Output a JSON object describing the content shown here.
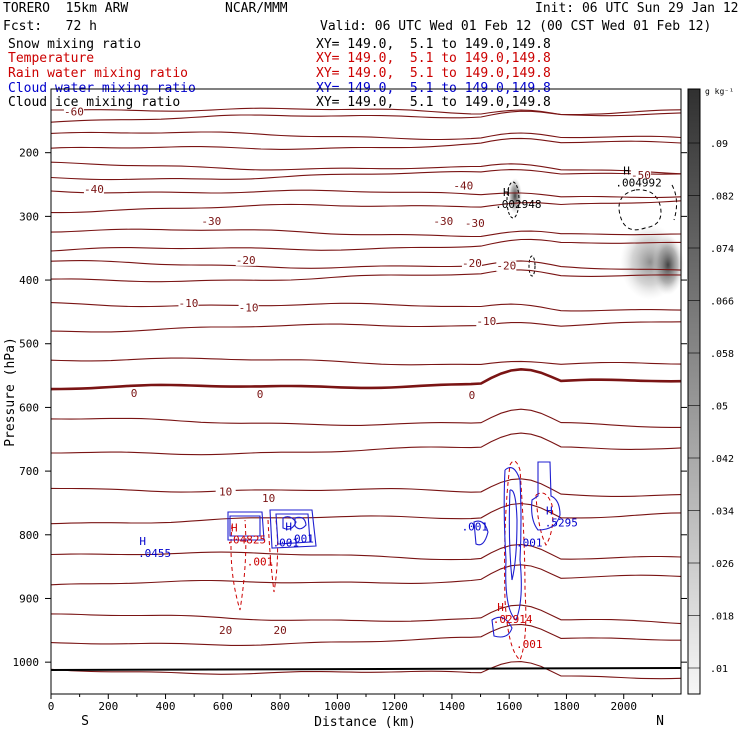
{
  "header": {
    "model": "TORERO  15km ARW",
    "center": "NCAR/MMM",
    "init": "Init: 06 UTC Sun 29 Jan 12",
    "fcst": "Fcst:   72 h",
    "valid": "Valid: 06 UTC Wed 01 Feb 12 (00 CST Wed 01 Feb 12)"
  },
  "fields": [
    {
      "name": "Snow mixing ratio",
      "xy": "XY= 149.0,  5.1 to 149.0,149.8",
      "color": "#000000"
    },
    {
      "name": "Temperature",
      "xy": "XY= 149.0,  5.1 to 149.0,149.8",
      "color": "#cc0000"
    },
    {
      "name": "Rain water mixing ratio",
      "xy": "XY= 149.0,  5.1 to 149.0,149.8",
      "color": "#cc0000"
    },
    {
      "name": "Cloud water mixing ratio",
      "xy": "XY= 149.0,  5.1 to 149.0,149.8",
      "color": "#0000cc"
    },
    {
      "name": "Cloud ice mixing ratio",
      "xy": "XY= 149.0,  5.1 to 149.0,149.8",
      "color": "#000000"
    }
  ],
  "colorbar": {
    "unit": "g kg⁻¹",
    "labels": [
      ".09",
      ".082",
      ".074",
      ".066",
      ".058",
      ".05",
      ".042",
      ".034",
      ".026",
      ".018",
      ".01"
    ]
  },
  "chart_data": {
    "type": "contour-cross-section",
    "xlabel": "Distance (km)",
    "ylabel": "Pressure (hPa)",
    "x_ticks": [
      0,
      200,
      400,
      600,
      800,
      1000,
      1200,
      1400,
      1600,
      1800,
      2000
    ],
    "y_ticks": [
      200,
      300,
      400,
      500,
      600,
      700,
      800,
      900,
      1000
    ],
    "xlim": [
      0,
      2200
    ],
    "ylim": [
      1050,
      100
    ],
    "endpoints": {
      "left": "S",
      "right": "N"
    },
    "isotherm_labels": [
      {
        "text": "-60",
        "x": 80,
        "p": 140
      },
      {
        "text": "-50",
        "x": 2060,
        "p": 240
      },
      {
        "text": "-40",
        "x": 150,
        "p": 262
      },
      {
        "text": "-40",
        "x": 1440,
        "p": 256
      },
      {
        "text": "-30",
        "x": 560,
        "p": 312
      },
      {
        "text": "-30",
        "x": 1370,
        "p": 312
      },
      {
        "text": "-30",
        "x": 1480,
        "p": 315
      },
      {
        "text": "-20",
        "x": 680,
        "p": 373
      },
      {
        "text": "-20",
        "x": 1470,
        "p": 378
      },
      {
        "text": "-20",
        "x": 1590,
        "p": 382
      },
      {
        "text": "-10",
        "x": 480,
        "p": 441
      },
      {
        "text": "-10",
        "x": 690,
        "p": 448
      },
      {
        "text": "-10",
        "x": 1520,
        "p": 469
      },
      {
        "text": "0",
        "x": 290,
        "p": 582
      },
      {
        "text": "0",
        "x": 730,
        "p": 584
      },
      {
        "text": "0",
        "x": 1470,
        "p": 585
      },
      {
        "text": "10",
        "x": 610,
        "p": 737
      },
      {
        "text": "10",
        "x": 760,
        "p": 747
      },
      {
        "text": "20",
        "x": 610,
        "p": 954
      },
      {
        "text": "20",
        "x": 800,
        "p": 954
      }
    ],
    "snow_maxima": [
      {
        "text": "H",
        "value": ".002948",
        "x": 1590,
        "p": 268
      },
      {
        "text": "H",
        "value": ".004992",
        "x": 2010,
        "p": 234
      }
    ],
    "rain_maxima": [
      {
        "text": "H",
        "value": ".04825",
        "x": 640,
        "p": 795
      },
      {
        "text": ".001",
        "x": 730,
        "p": 848
      },
      {
        "text": "H",
        "value": ".02914",
        "x": 1570,
        "p": 920
      },
      {
        "text": ".001",
        "x": 1670,
        "p": 978
      }
    ],
    "cloud_maxima": [
      {
        "text": "H",
        "value": ".0455",
        "x": 320,
        "p": 816
      },
      {
        "text": "H",
        "value": ".001",
        "x": 830,
        "p": 793
      },
      {
        "text": ".001",
        "x": 820,
        "p": 818
      },
      {
        "text": ".001",
        "x": 1480,
        "p": 793
      },
      {
        "text": ".001",
        "x": 1670,
        "p": 818
      },
      {
        "text": "H",
        "value": ".5295",
        "x": 1740,
        "p": 768
      }
    ]
  }
}
